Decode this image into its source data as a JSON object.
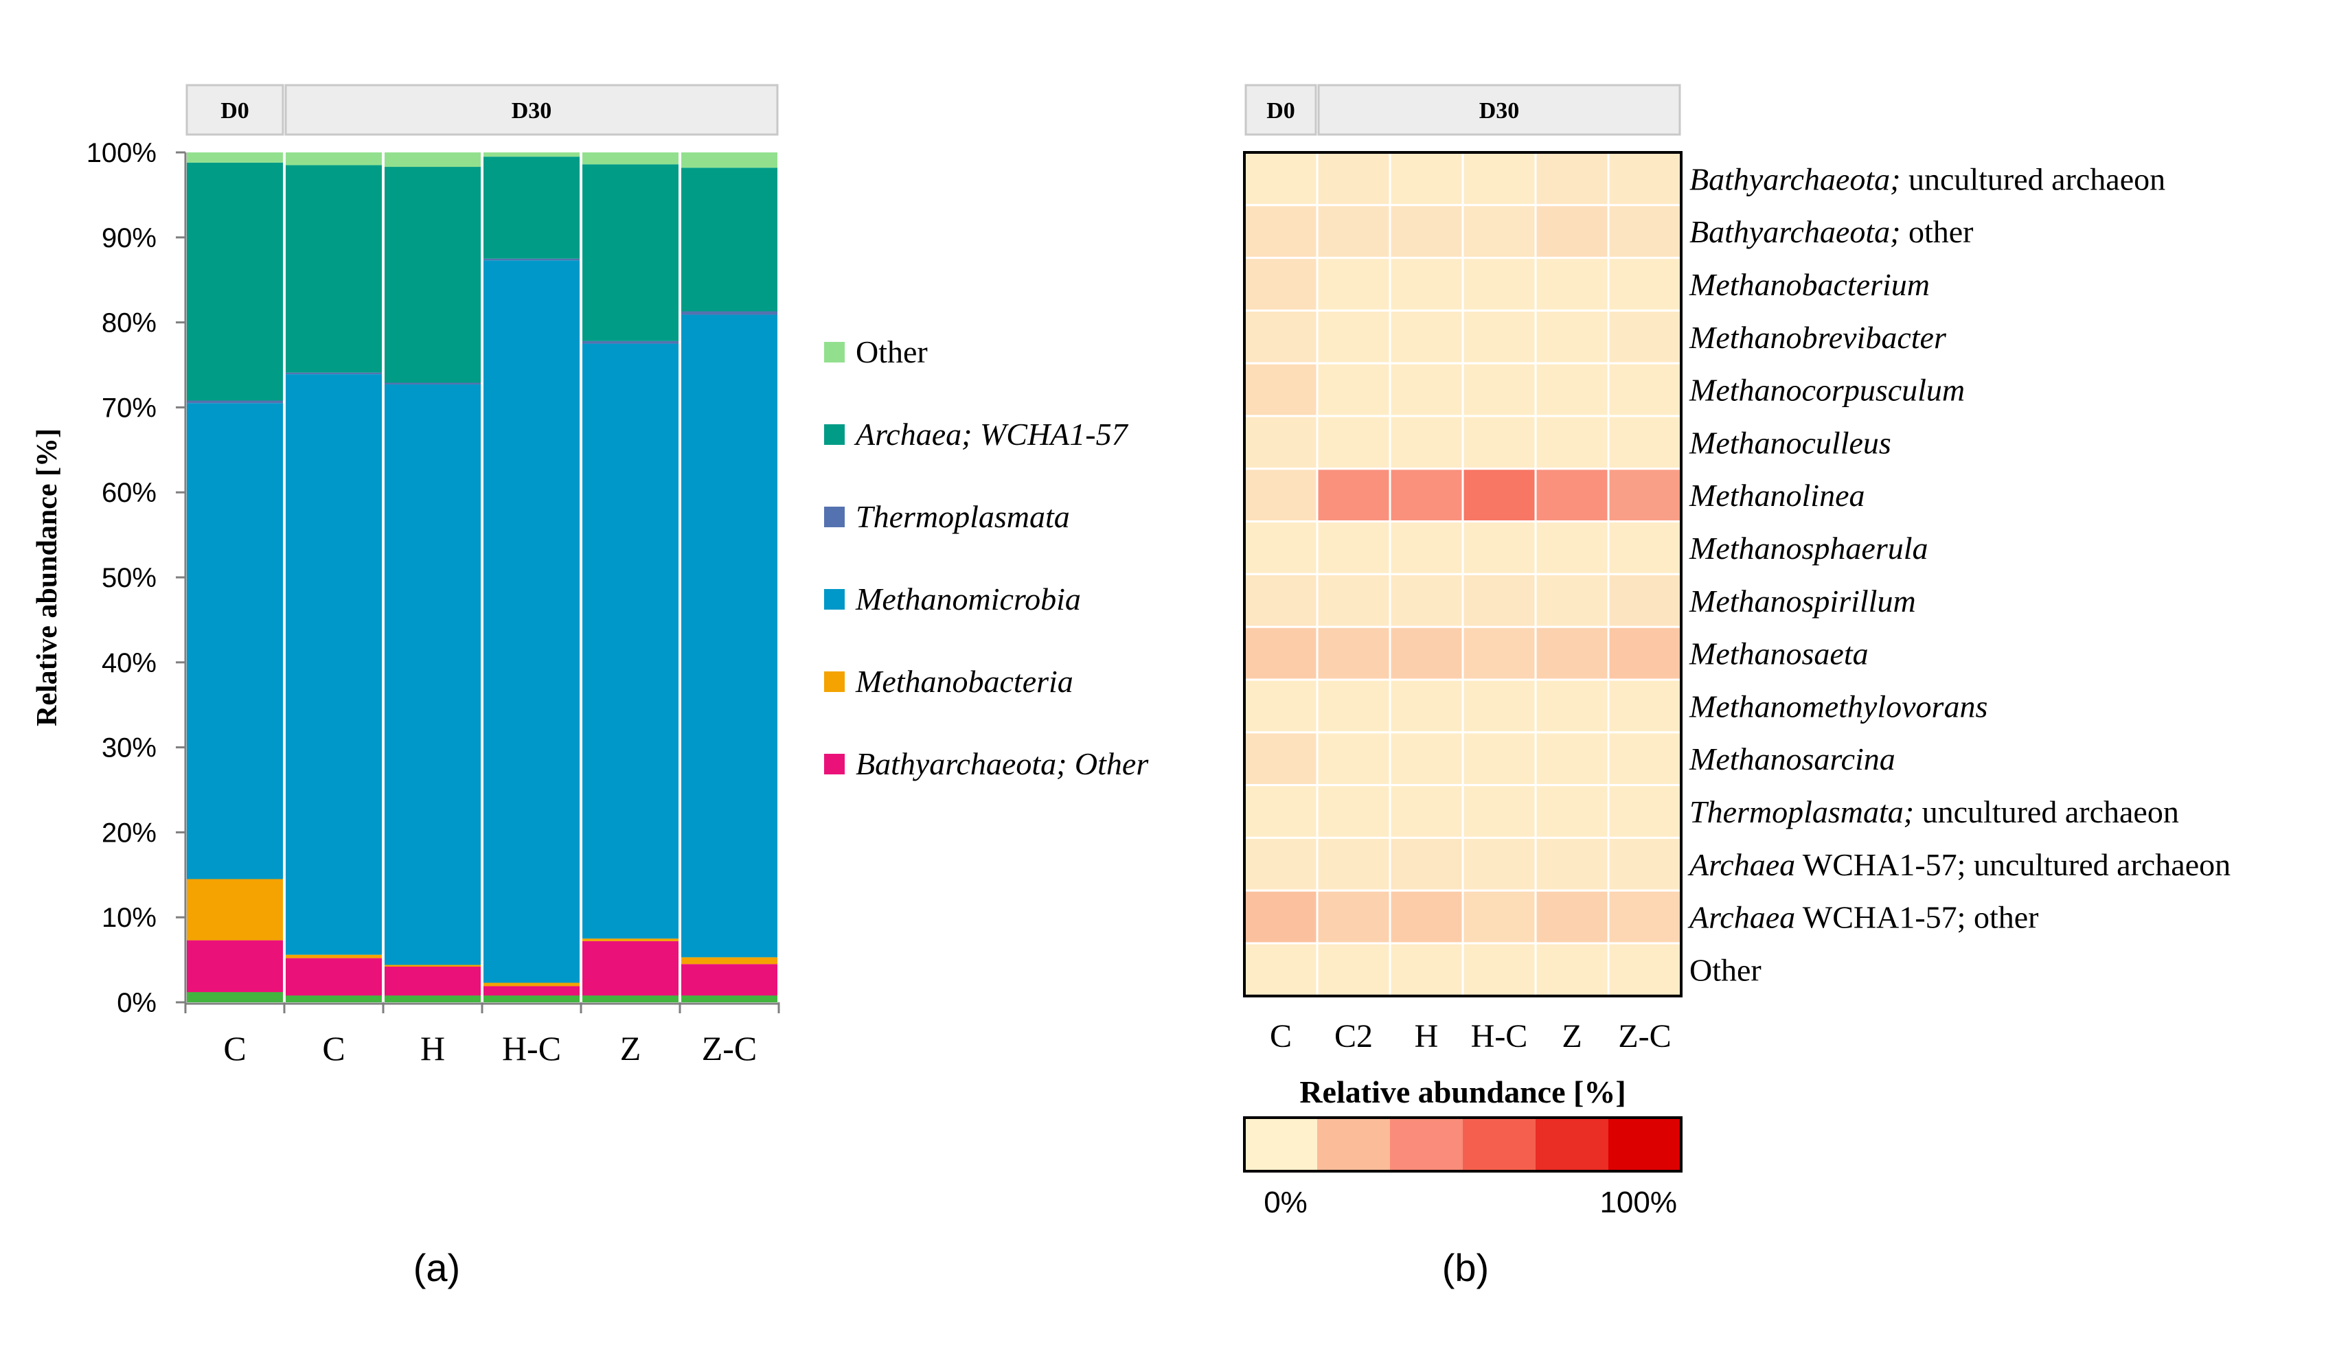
{
  "chart_data": [
    {
      "type": "bar",
      "stacked": true,
      "panel_label": "(a)",
      "ylabel": "Relative abundance [%]",
      "ylim": [
        0,
        100
      ],
      "yticks": [
        "0%",
        "10%",
        "20%",
        "30%",
        "40%",
        "50%",
        "60%",
        "70%",
        "80%",
        "90%",
        "100%"
      ],
      "groups": [
        {
          "label": "D0",
          "categories": 1
        },
        {
          "label": "D30",
          "categories": 5
        }
      ],
      "categories": [
        "C",
        "C",
        "H",
        "H-C",
        "Z",
        "Z-C"
      ],
      "series": [
        {
          "name": "Bathyarchaeota; Other",
          "display": "Bathyarchaeota; Other",
          "color": "#EA1279",
          "values": [
            7.3,
            5.2,
            4.2,
            1.9,
            7.2,
            4.5
          ]
        },
        {
          "name": "Methanobacteria",
          "display": "Methanobacteria",
          "color": "#F4A300",
          "values": [
            7.2,
            0.4,
            0.2,
            0.4,
            0.3,
            0.8
          ]
        },
        {
          "name": "Methanomicrobia",
          "display": "Methanomicrobia",
          "color": "#0098C8",
          "values": [
            56.0,
            68.3,
            68.3,
            85.0,
            70.0,
            75.6
          ]
        },
        {
          "name": "Thermoplasmata",
          "display": "Thermoplasmata",
          "color": "#5572B0",
          "values": [
            0.3,
            0.2,
            0.2,
            0.2,
            0.3,
            0.4
          ]
        },
        {
          "name": "Archaea; WCHA1-57",
          "display": "Archaea; WCHA1-57",
          "color": "#009C86",
          "values": [
            28.0,
            24.4,
            25.4,
            12.0,
            20.8,
            16.9
          ]
        },
        {
          "name": "Other",
          "display": "Other",
          "color": "#92E08E",
          "values": [
            1.2,
            1.5,
            1.7,
            0.5,
            1.4,
            1.8
          ]
        }
      ],
      "bottom_sliver": {
        "color": "#43B53F",
        "values": [
          1.2,
          0.8,
          0.8,
          0.8,
          0.8,
          0.8
        ]
      }
    },
    {
      "type": "heatmap",
      "panel_label": "(b)",
      "groups": [
        {
          "label": "D0",
          "columns": 1
        },
        {
          "label": "D30",
          "columns": 5
        }
      ],
      "columns": [
        "C",
        "C2",
        "H",
        "H-C",
        "Z",
        "Z-C"
      ],
      "rows": [
        {
          "parts": [
            {
              "text": "Bathyarchaeota;",
              "italic": true
            },
            {
              "text": " uncultured archaeon",
              "italic": false
            }
          ],
          "values": [
            2,
            3,
            2,
            2,
            4,
            3
          ]
        },
        {
          "parts": [
            {
              "text": "Bathyarchaeota;",
              "italic": true
            },
            {
              "text": " other",
              "italic": false
            }
          ],
          "values": [
            6,
            5,
            5,
            4,
            7,
            5
          ]
        },
        {
          "parts": [
            {
              "text": "Methanobacterium",
              "italic": true
            }
          ],
          "values": [
            6,
            2,
            2,
            2,
            2,
            2
          ]
        },
        {
          "parts": [
            {
              "text": "Methanobrevibacter",
              "italic": true
            }
          ],
          "values": [
            4,
            2,
            2,
            2,
            2,
            3
          ]
        },
        {
          "parts": [
            {
              "text": "Methanocorpusculum",
              "italic": true
            }
          ],
          "values": [
            8,
            2,
            2,
            2,
            2,
            2
          ]
        },
        {
          "parts": [
            {
              "text": "Methanoculleus",
              "italic": true
            }
          ],
          "values": [
            3,
            2,
            2,
            2,
            2,
            2
          ]
        },
        {
          "parts": [
            {
              "text": "Methanolinea",
              "italic": true
            }
          ],
          "values": [
            6,
            38,
            38,
            50,
            38,
            32
          ]
        },
        {
          "parts": [
            {
              "text": "Methanosphaerula",
              "italic": true
            }
          ],
          "values": [
            2,
            2,
            2,
            2,
            2,
            2
          ]
        },
        {
          "parts": [
            {
              "text": "Methanospirillum",
              "italic": true
            }
          ],
          "values": [
            4,
            3,
            3,
            4,
            3,
            5
          ]
        },
        {
          "parts": [
            {
              "text": "Methanosaeta",
              "italic": true
            }
          ],
          "values": [
            14,
            12,
            13,
            10,
            12,
            16
          ]
        },
        {
          "parts": [
            {
              "text": "Methanomethylovorans",
              "italic": true
            }
          ],
          "values": [
            2,
            2,
            2,
            2,
            2,
            2
          ]
        },
        {
          "parts": [
            {
              "text": "Methanosarcina",
              "italic": true
            }
          ],
          "values": [
            6,
            2,
            2,
            2,
            2,
            2
          ]
        },
        {
          "parts": [
            {
              "text": "Thermoplasmata;",
              "italic": true
            },
            {
              "text": " uncultured archaeon",
              "italic": false
            }
          ],
          "values": [
            2,
            2,
            2,
            2,
            2,
            2
          ]
        },
        {
          "parts": [
            {
              "text": "Archaea",
              "italic": true
            },
            {
              "text": " WCHA1-57; uncultured archaeon",
              "italic": false
            }
          ],
          "values": [
            3,
            3,
            4,
            3,
            3,
            3
          ]
        },
        {
          "parts": [
            {
              "text": "Archaea",
              "italic": true
            },
            {
              "text": " WCHA1-57; other",
              "italic": false
            }
          ],
          "values": [
            18,
            12,
            14,
            8,
            12,
            10
          ]
        },
        {
          "parts": [
            {
              "text": "Other",
              "italic": false
            }
          ],
          "values": [
            2,
            2,
            2,
            2,
            2,
            2
          ]
        }
      ],
      "colorbar": {
        "title": "Relative abundance [%]",
        "min_label": "0%",
        "max_label": "100%",
        "vmin": 0,
        "vmax": 100,
        "colors": [
          "#FEF1CC",
          "#FBBC9A",
          "#F98C7A",
          "#F5604E",
          "#EA2D25",
          "#DC0000"
        ]
      }
    }
  ]
}
